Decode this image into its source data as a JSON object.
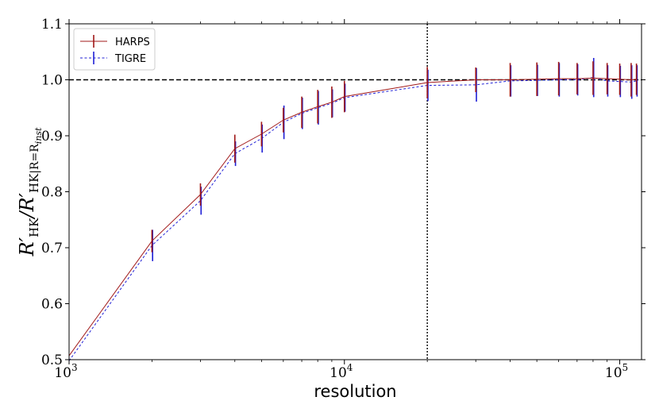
{
  "chart_data": {
    "type": "line",
    "xscale": "log",
    "xlabel": "resolution",
    "ylabel": "R'HK / R'HK |R=Rinst",
    "ylabel_parts": {
      "main": "R′",
      "sub": "HK",
      "slash": "/",
      "sub_tail": "|R=R",
      "sub_inst": "inst"
    },
    "xlim": [
      1000,
      120000
    ],
    "ylim": [
      0.5,
      1.1
    ],
    "x_ticks": [
      {
        "value": 1000,
        "base": "10",
        "exp": "3"
      },
      {
        "value": 10000,
        "base": "10",
        "exp": "4"
      },
      {
        "value": 100000,
        "base": "10",
        "exp": "5"
      }
    ],
    "y_ticks": [
      {
        "value": 0.5,
        "label": "0.5"
      },
      {
        "value": 0.6,
        "label": "0.6"
      },
      {
        "value": 0.7,
        "label": "0.7"
      },
      {
        "value": 0.8,
        "label": "0.8"
      },
      {
        "value": 0.9,
        "label": "0.9"
      },
      {
        "value": 1.0,
        "label": "1.0"
      },
      {
        "value": 1.1,
        "label": "1.1"
      }
    ],
    "reference_lines": {
      "hline_y": 1.0,
      "vline_x": 20000
    },
    "legend_position": "top-left",
    "series": [
      {
        "name": "HARPS",
        "color": "#a01818",
        "linestyle": "solid",
        "x": [
          1000,
          2000,
          3000,
          4000,
          5000,
          6000,
          7000,
          8000,
          9000,
          10000,
          20000,
          30000,
          40000,
          50000,
          60000,
          70000,
          80000,
          90000,
          100000,
          110000,
          115000
        ],
        "y": [
          0.507,
          0.712,
          0.795,
          0.877,
          0.903,
          0.928,
          0.942,
          0.952,
          0.96,
          0.97,
          0.995,
          1.0,
          1.0,
          1.001,
          1.002,
          1.002,
          1.003,
          1.002,
          1.001,
          1.0,
          1.001
        ],
        "err": [
          0.0,
          0.02,
          0.02,
          0.025,
          0.022,
          0.022,
          0.028,
          0.03,
          0.028,
          0.028,
          0.028,
          0.022,
          0.03,
          0.03,
          0.03,
          0.028,
          0.03,
          0.028,
          0.028,
          0.03,
          0.028
        ]
      },
      {
        "name": "TIGRE",
        "color": "#1f1fd6",
        "linestyle": "dashed",
        "x": [
          1000,
          2000,
          3000,
          4000,
          5000,
          6000,
          7000,
          8000,
          9000,
          10000,
          20000,
          30000,
          40000,
          50000,
          60000,
          70000,
          80000,
          90000,
          100000,
          110000,
          115000
        ],
        "y": [
          0.498,
          0.704,
          0.784,
          0.868,
          0.895,
          0.924,
          0.94,
          0.95,
          0.958,
          0.968,
          0.99,
          0.991,
          0.998,
          0.999,
          1.0,
          1.0,
          1.004,
          0.998,
          0.997,
          0.996,
          0.998
        ],
        "err": [
          0.0,
          0.028,
          0.025,
          0.022,
          0.025,
          0.03,
          0.028,
          0.03,
          0.025,
          0.025,
          0.028,
          0.03,
          0.028,
          0.028,
          0.03,
          0.028,
          0.035,
          0.028,
          0.028,
          0.03,
          0.028
        ]
      }
    ]
  }
}
